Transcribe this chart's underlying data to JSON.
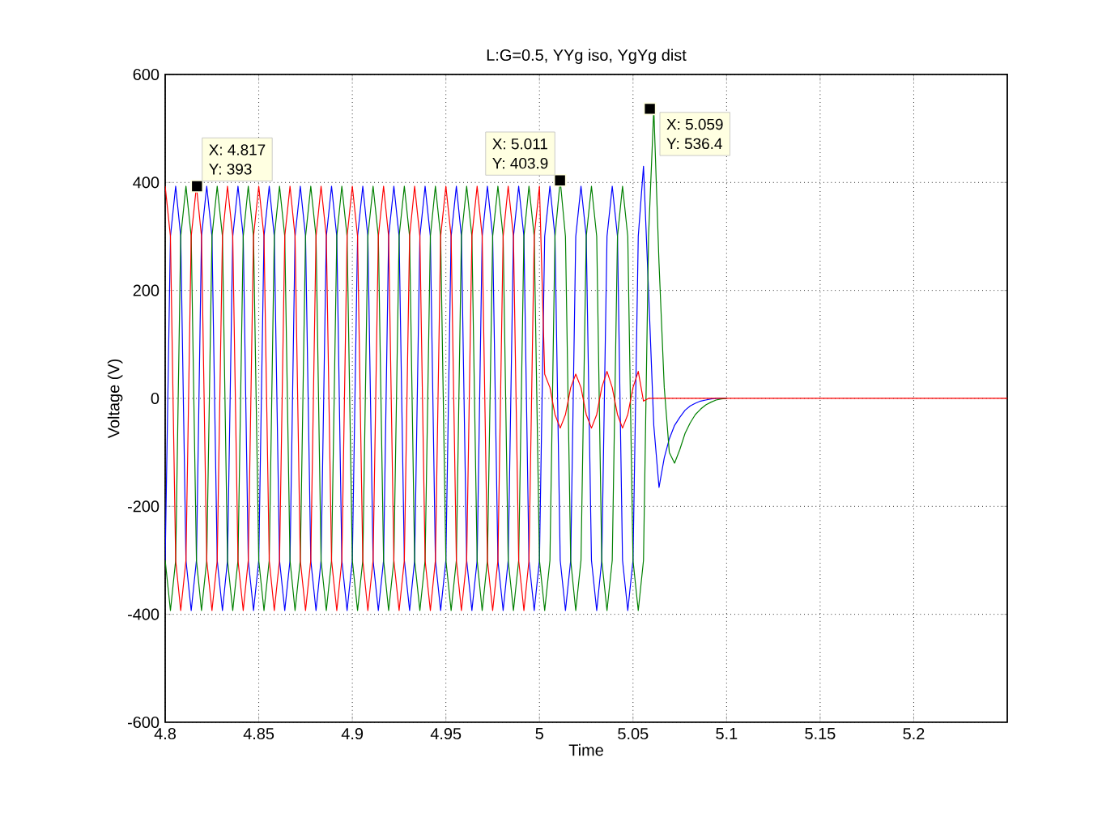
{
  "chart_data": {
    "type": "line",
    "title": "L:G=0.5, YYg iso, YgYg dist",
    "xlabel": "Time",
    "ylabel": "Voltage (V)",
    "x": [
      4.8,
      4.8028,
      4.8056,
      4.8083,
      4.8111,
      4.8139,
      4.8167,
      4.8194,
      4.8222,
      4.825,
      4.8278,
      4.8306,
      4.8333,
      4.8361,
      4.8389,
      4.8417,
      4.8444,
      4.8472,
      4.85,
      4.8528,
      4.8556,
      4.8583,
      4.8611,
      4.8639,
      4.8667,
      4.8694,
      4.8722,
      4.875,
      4.8778,
      4.8806,
      4.8833,
      4.8861,
      4.8889,
      4.8917,
      4.8944,
      4.8972,
      4.9,
      4.9028,
      4.9056,
      4.9083,
      4.9111,
      4.9139,
      4.9167,
      4.9194,
      4.9222,
      4.925,
      4.9278,
      4.9306,
      4.9333,
      4.9361,
      4.9389,
      4.9417,
      4.9444,
      4.9472,
      4.95,
      4.9528,
      4.9556,
      4.9583,
      4.9611,
      4.9639,
      4.9667,
      4.9694,
      4.9722,
      4.975,
      4.9778,
      4.9806,
      4.9833,
      4.9861,
      4.9889,
      4.9917,
      4.9944,
      4.9972,
      5.0,
      5.0028,
      5.0056,
      5.0083,
      5.0111,
      5.0139,
      5.0167,
      5.0194,
      5.0222,
      5.025,
      5.0278,
      5.0306,
      5.0333,
      5.0361,
      5.0389,
      5.0417,
      5.0444,
      5.0472,
      5.05,
      5.0528,
      5.0556,
      5.0583,
      5.0611,
      5.0639,
      5.0667,
      5.0694,
      5.0722,
      5.075,
      5.0778,
      5.0806,
      5.0833,
      5.0861,
      5.0889,
      5.0917,
      5.0944,
      5.0972,
      5.1,
      5.25
    ],
    "series": [
      {
        "color": "#0000ff",
        "values": [
          -300,
          300,
          393,
          300,
          -300,
          -393,
          -300,
          300,
          393,
          300,
          -300,
          -393,
          -300,
          300,
          393,
          300,
          -300,
          -393,
          -300,
          300,
          393,
          300,
          -300,
          -393,
          -300,
          300,
          393,
          300,
          -300,
          -393,
          -300,
          300,
          393,
          300,
          -300,
          -393,
          -300,
          300,
          393,
          300,
          -300,
          -393,
          -300,
          300,
          393,
          300,
          -300,
          -393,
          -300,
          300,
          393,
          300,
          -300,
          -393,
          -300,
          300,
          393,
          300,
          -300,
          -393,
          -300,
          300,
          393,
          300,
          -300,
          -393,
          -300,
          300,
          393,
          300,
          -300,
          -393,
          -300,
          300,
          393,
          300,
          -300,
          -393,
          -300,
          300,
          393,
          300,
          -300,
          -393,
          -300,
          300,
          393,
          300,
          -300,
          -393,
          -300,
          300,
          430,
          200,
          -50,
          -165,
          -110,
          -75,
          -50,
          -35,
          -22,
          -14,
          -9,
          -5,
          -3,
          -1,
          0,
          0,
          0,
          null
        ]
      },
      {
        "color": "#008000",
        "values": [
          -300,
          -393,
          -300,
          300,
          393,
          300,
          -300,
          -393,
          -300,
          300,
          393,
          300,
          -300,
          -393,
          -300,
          300,
          393,
          300,
          -300,
          -393,
          -300,
          300,
          393,
          300,
          -300,
          -393,
          -300,
          300,
          393,
          300,
          -300,
          -393,
          -300,
          300,
          393,
          300,
          -300,
          -393,
          -300,
          300,
          393,
          300,
          -300,
          -393,
          -300,
          300,
          393,
          300,
          -300,
          -393,
          -300,
          300,
          393,
          300,
          -300,
          -393,
          -300,
          300,
          393,
          300,
          -300,
          -393,
          -300,
          300,
          393,
          300,
          -300,
          -393,
          -300,
          300,
          393,
          300,
          -300,
          -393,
          -300,
          300,
          403.9,
          300,
          -300,
          -393,
          -300,
          300,
          393,
          300,
          -300,
          -393,
          -300,
          300,
          393,
          300,
          -300,
          -393,
          -300,
          300,
          536.4,
          250,
          20,
          -100,
          -120,
          -95,
          -65,
          -45,
          -30,
          -20,
          -12,
          -7,
          -3,
          -1,
          0,
          null
        ]
      },
      {
        "color": "#ff0000",
        "values": [
          393,
          300,
          -300,
          -393,
          -300,
          300,
          393,
          300,
          -300,
          -393,
          -300,
          300,
          393,
          300,
          -300,
          -393,
          -300,
          300,
          393,
          300,
          -300,
          -393,
          -300,
          300,
          393,
          300,
          -300,
          -393,
          -300,
          300,
          393,
          300,
          -300,
          -393,
          -300,
          300,
          393,
          300,
          -300,
          -393,
          -300,
          300,
          393,
          300,
          -300,
          -393,
          -300,
          300,
          393,
          300,
          -300,
          -393,
          -300,
          300,
          393,
          300,
          -300,
          -393,
          -300,
          300,
          393,
          300,
          -300,
          -393,
          -300,
          300,
          393,
          300,
          -300,
          -393,
          -300,
          300,
          393,
          45,
          20,
          -30,
          -55,
          -30,
          20,
          45,
          20,
          -30,
          -55,
          -30,
          20,
          50,
          20,
          -30,
          -55,
          -30,
          20,
          50,
          -5,
          0,
          0,
          0,
          0,
          0,
          0,
          0,
          0,
          0,
          0,
          0,
          0,
          0,
          0,
          0,
          0,
          0
        ]
      }
    ],
    "xlim": [
      4.8,
      5.25
    ],
    "ylim": [
      -600,
      600
    ],
    "xticks": [
      4.8,
      4.85,
      4.9,
      4.95,
      5,
      5.05,
      5.1,
      5.15,
      5.2
    ],
    "yticks": [
      -600,
      -400,
      -200,
      0,
      200,
      400,
      600
    ],
    "grid": true,
    "marker": "none",
    "annotations": [
      {
        "text": "X: 4.817",
        "x": 4.817,
        "y": 393
      },
      {
        "text": "Y: 393",
        "x": 4.817,
        "y": 393
      },
      {
        "text": "X: 5.011",
        "x": 5.011,
        "y": 403.9
      },
      {
        "text": "Y: 403.9",
        "x": 5.011,
        "y": 403.9
      },
      {
        "text": "X: 5.059",
        "x": 5.059,
        "y": 536.4
      },
      {
        "text": "Y: 536.4",
        "x": 5.059,
        "y": 536.4
      }
    ]
  }
}
